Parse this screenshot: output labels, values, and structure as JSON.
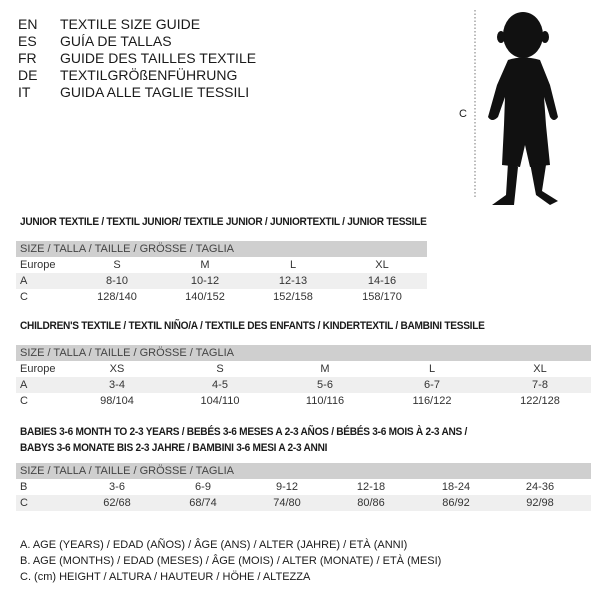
{
  "titles": [
    {
      "code": "EN",
      "text": "TEXTILE SIZE GUIDE"
    },
    {
      "code": "ES",
      "text": "GUÍA DE TALLAS"
    },
    {
      "code": "FR",
      "text": "GUIDE DES TAILLES TEXTILE"
    },
    {
      "code": "DE",
      "text": "TEXTILGRÖßENFÜHRUNG"
    },
    {
      "code": "IT",
      "text": "GUIDA ALLE TAGLIE TESSILI"
    }
  ],
  "figure": {
    "measure_label": "C"
  },
  "junior": {
    "title": "JUNIOR TEXTILE / TEXTIL JUNIOR/ TEXTILE JUNIOR / JUNIORTEXTIL / JUNIOR TESSILE",
    "header": "SIZE / TALLA / TAILLE / GRÖSSE / TAGLIA",
    "rows": [
      {
        "label": "Europe",
        "values": [
          "S",
          "M",
          "L",
          "XL"
        ]
      },
      {
        "label": "A",
        "values": [
          "8-10",
          "10-12",
          "12-13",
          "14-16"
        ]
      },
      {
        "label": "C",
        "values": [
          "128/140",
          "140/152",
          "152/158",
          "158/170"
        ]
      }
    ]
  },
  "children": {
    "title": "CHILDREN'S TEXTILE / TEXTIL NIÑO/A / TEXTILE DES ENFANTS / KINDERTEXTIL / BAMBINI TESSILE",
    "header": "SIZE / TALLA / TAILLE / GRÖSSE / TAGLIA",
    "rows": [
      {
        "label": "Europe",
        "values": [
          "XS",
          "S",
          "M",
          "L",
          "XL"
        ]
      },
      {
        "label": "A",
        "values": [
          "3-4",
          "4-5",
          "5-6",
          "6-7",
          "7-8"
        ]
      },
      {
        "label": "C",
        "values": [
          "98/104",
          "104/110",
          "110/116",
          "116/122",
          "122/128"
        ]
      }
    ]
  },
  "babies": {
    "title_line1": "BABIES 3-6 MONTH TO 2-3 YEARS / BEBÉS 3-6 MESES A 2-3 AÑOS / BÉBÉS 3-6 MOIS À 2-3 ANS /",
    "title_line2": "BABYS 3-6 MONATE BIS 2-3 JAHRE / BAMBINI 3-6 MESI A 2-3 ANNI",
    "header": "SIZE / TALLA / TAILLE / GRÖSSE / TAGLIA",
    "rows": [
      {
        "label": "B",
        "values": [
          "3-6",
          "6-9",
          "9-12",
          "12-18",
          "18-24",
          "24-36"
        ]
      },
      {
        "label": "C",
        "values": [
          "62/68",
          "68/74",
          "74/80",
          "80/86",
          "86/92",
          "92/98"
        ]
      }
    ]
  },
  "legend": [
    "A. AGE (YEARS) / EDAD (AÑOS) / ÂGE (ANS) / ALTER (JAHRE) / ETÀ (ANNI)",
    "B. AGE (MONTHS) / EDAD (MESES) / ÂGE (MOIS) / ALTER (MONATE) / ETÀ (MESI)",
    "C. (cm) HEIGHT / ALTURA / HAUTEUR / HÖHE / ALTEZZA"
  ]
}
